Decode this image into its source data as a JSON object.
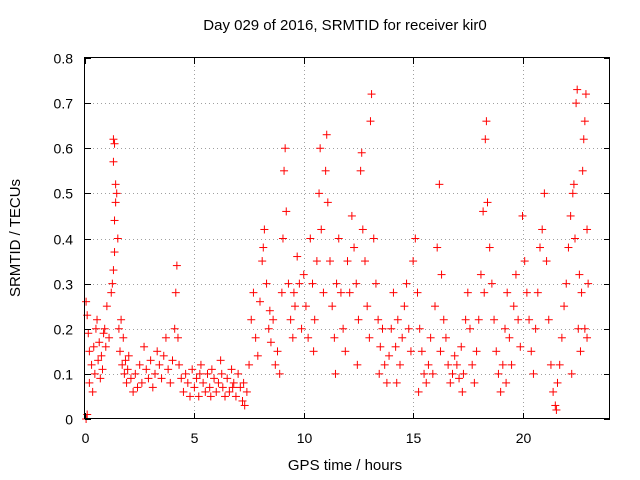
{
  "chart_data": {
    "type": "scatter",
    "title": "Day 029 of 2016, SRMTID for receiver kir0",
    "xlabel": "GPS time / hours",
    "ylabel": "SRMTID / TECUs",
    "xlim": [
      0,
      24
    ],
    "ylim": [
      0,
      0.8
    ],
    "xticks": [
      0,
      5,
      10,
      15,
      20
    ],
    "xtick_labels": [
      "0",
      "5",
      "10",
      "15",
      "20"
    ],
    "yticks": [
      0,
      0.1,
      0.2,
      0.3,
      0.4,
      0.5,
      0.6,
      0.7,
      0.8
    ],
    "ytick_labels": [
      "0",
      "0.1",
      "0.2",
      "0.3",
      "0.4",
      "0.5",
      "0.6",
      "0.7",
      "0.8"
    ],
    "grid": true,
    "marker": "+",
    "color": "#ff0000",
    "series": [
      {
        "name": "kir0",
        "points": [
          [
            0.05,
            0.0
          ],
          [
            0.1,
            0.01
          ],
          [
            0.05,
            0.26
          ],
          [
            0.1,
            0.23
          ],
          [
            0.15,
            0.19
          ],
          [
            0.2,
            0.15
          ],
          [
            0.3,
            0.12
          ],
          [
            0.4,
            0.16
          ],
          [
            0.5,
            0.2
          ],
          [
            0.6,
            0.13
          ],
          [
            0.7,
            0.09
          ],
          [
            0.8,
            0.11
          ],
          [
            0.9,
            0.2
          ],
          [
            1.0,
            0.25
          ],
          [
            1.1,
            0.18
          ],
          [
            0.2,
            0.08
          ],
          [
            0.35,
            0.06
          ],
          [
            0.45,
            0.1
          ],
          [
            0.55,
            0.22
          ],
          [
            0.65,
            0.17
          ],
          [
            0.75,
            0.14
          ],
          [
            0.85,
            0.19
          ],
          [
            0.95,
            0.16
          ],
          [
            1.2,
            0.28
          ],
          [
            1.25,
            0.3
          ],
          [
            1.3,
            0.33
          ],
          [
            1.35,
            0.37
          ],
          [
            1.35,
            0.44
          ],
          [
            1.4,
            0.48
          ],
          [
            1.4,
            0.52
          ],
          [
            1.3,
            0.57
          ],
          [
            1.35,
            0.61
          ],
          [
            1.3,
            0.62
          ],
          [
            1.45,
            0.5
          ],
          [
            1.5,
            0.4
          ],
          [
            1.55,
            0.2
          ],
          [
            1.6,
            0.15
          ],
          [
            1.7,
            0.12
          ],
          [
            1.8,
            0.1
          ],
          [
            1.9,
            0.08
          ],
          [
            2.0,
            0.14
          ],
          [
            2.1,
            0.09
          ],
          [
            2.2,
            0.06
          ],
          [
            1.65,
            0.22
          ],
          [
            1.75,
            0.18
          ],
          [
            1.85,
            0.13
          ],
          [
            1.95,
            0.11
          ],
          [
            2.3,
            0.1
          ],
          [
            2.4,
            0.07
          ],
          [
            2.5,
            0.12
          ],
          [
            2.6,
            0.08
          ],
          [
            2.7,
            0.16
          ],
          [
            2.8,
            0.11
          ],
          [
            2.9,
            0.09
          ],
          [
            3.0,
            0.13
          ],
          [
            3.1,
            0.07
          ],
          [
            3.2,
            0.1
          ],
          [
            3.3,
            0.15
          ],
          [
            3.4,
            0.12
          ],
          [
            3.5,
            0.09
          ],
          [
            3.6,
            0.14
          ],
          [
            3.7,
            0.18
          ],
          [
            3.8,
            0.11
          ],
          [
            3.9,
            0.08
          ],
          [
            4.0,
            0.13
          ],
          [
            4.1,
            0.2
          ],
          [
            4.15,
            0.28
          ],
          [
            4.2,
            0.34
          ],
          [
            4.25,
            0.18
          ],
          [
            4.3,
            0.12
          ],
          [
            4.4,
            0.09
          ],
          [
            4.5,
            0.06
          ],
          [
            4.6,
            0.1
          ],
          [
            4.7,
            0.08
          ],
          [
            4.8,
            0.05
          ],
          [
            4.9,
            0.11
          ],
          [
            5.0,
            0.07
          ],
          [
            5.1,
            0.09
          ],
          [
            5.2,
            0.05
          ],
          [
            5.3,
            0.12
          ],
          [
            5.4,
            0.08
          ],
          [
            5.5,
            0.06
          ],
          [
            5.6,
            0.1
          ],
          [
            5.7,
            0.07
          ],
          [
            5.8,
            0.11
          ],
          [
            5.9,
            0.09
          ],
          [
            6.0,
            0.06
          ],
          [
            6.1,
            0.08
          ],
          [
            6.2,
            0.13
          ],
          [
            6.3,
            0.07
          ],
          [
            6.4,
            0.05
          ],
          [
            6.5,
            0.09
          ],
          [
            6.6,
            0.06
          ],
          [
            6.7,
            0.11
          ],
          [
            6.8,
            0.08
          ],
          [
            6.9,
            0.05
          ],
          [
            7.0,
            0.1
          ],
          [
            7.1,
            0.07
          ],
          [
            7.2,
            0.04
          ],
          [
            7.3,
            0.03
          ],
          [
            7.4,
            0.06
          ],
          [
            5.25,
            0.1
          ],
          [
            5.75,
            0.05
          ],
          [
            6.25,
            0.1
          ],
          [
            6.75,
            0.07
          ],
          [
            7.25,
            0.08
          ],
          [
            7.5,
            0.12
          ],
          [
            7.6,
            0.22
          ],
          [
            7.7,
            0.28
          ],
          [
            7.8,
            0.18
          ],
          [
            7.9,
            0.14
          ],
          [
            8.0,
            0.26
          ],
          [
            8.1,
            0.35
          ],
          [
            8.2,
            0.42
          ],
          [
            8.3,
            0.3
          ],
          [
            8.4,
            0.2
          ],
          [
            8.5,
            0.17
          ],
          [
            8.6,
            0.22
          ],
          [
            8.7,
            0.12
          ],
          [
            8.8,
            0.15
          ],
          [
            8.9,
            0.1
          ],
          [
            9.0,
            0.28
          ],
          [
            9.05,
            0.4
          ],
          [
            9.1,
            0.55
          ],
          [
            9.15,
            0.6
          ],
          [
            9.2,
            0.46
          ],
          [
            9.3,
            0.3
          ],
          [
            9.4,
            0.22
          ],
          [
            9.5,
            0.18
          ],
          [
            9.6,
            0.25
          ],
          [
            9.7,
            0.36
          ],
          [
            9.8,
            0.3
          ],
          [
            9.9,
            0.2
          ],
          [
            8.15,
            0.38
          ],
          [
            8.45,
            0.24
          ],
          [
            9.55,
            0.28
          ],
          [
            10.0,
            0.32
          ],
          [
            10.1,
            0.25
          ],
          [
            10.2,
            0.18
          ],
          [
            10.3,
            0.4
          ],
          [
            10.4,
            0.3
          ],
          [
            10.5,
            0.22
          ],
          [
            10.6,
            0.35
          ],
          [
            10.7,
            0.5
          ],
          [
            10.75,
            0.6
          ],
          [
            10.8,
            0.42
          ],
          [
            10.9,
            0.28
          ],
          [
            11.0,
            0.55
          ],
          [
            11.05,
            0.63
          ],
          [
            11.1,
            0.48
          ],
          [
            11.2,
            0.35
          ],
          [
            11.3,
            0.25
          ],
          [
            11.4,
            0.18
          ],
          [
            11.5,
            0.3
          ],
          [
            11.6,
            0.4
          ],
          [
            11.7,
            0.28
          ],
          [
            11.8,
            0.2
          ],
          [
            11.9,
            0.15
          ],
          [
            12.0,
            0.35
          ],
          [
            12.1,
            0.28
          ],
          [
            12.2,
            0.45
          ],
          [
            12.3,
            0.38
          ],
          [
            12.4,
            0.3
          ],
          [
            12.5,
            0.22
          ],
          [
            12.6,
            0.55
          ],
          [
            12.65,
            0.59
          ],
          [
            12.7,
            0.42
          ],
          [
            12.8,
            0.35
          ],
          [
            12.9,
            0.25
          ],
          [
            13.0,
            0.18
          ],
          [
            13.05,
            0.66
          ],
          [
            13.1,
            0.72
          ],
          [
            13.2,
            0.4
          ],
          [
            13.3,
            0.3
          ],
          [
            13.4,
            0.22
          ],
          [
            13.5,
            0.16
          ],
          [
            13.6,
            0.2
          ],
          [
            13.7,
            0.12
          ],
          [
            13.8,
            0.08
          ],
          [
            13.9,
            0.14
          ],
          [
            10.45,
            0.15
          ],
          [
            11.45,
            0.1
          ],
          [
            12.45,
            0.12
          ],
          [
            13.45,
            0.1
          ],
          [
            14.0,
            0.2
          ],
          [
            14.1,
            0.28
          ],
          [
            14.2,
            0.16
          ],
          [
            14.3,
            0.22
          ],
          [
            14.4,
            0.12
          ],
          [
            14.5,
            0.18
          ],
          [
            14.6,
            0.25
          ],
          [
            14.7,
            0.3
          ],
          [
            14.8,
            0.2
          ],
          [
            14.9,
            0.15
          ],
          [
            15.0,
            0.35
          ],
          [
            15.1,
            0.4
          ],
          [
            15.2,
            0.28
          ],
          [
            15.3,
            0.2
          ],
          [
            15.4,
            0.15
          ],
          [
            15.5,
            0.1
          ],
          [
            15.6,
            0.08
          ],
          [
            15.7,
            0.12
          ],
          [
            15.8,
            0.18
          ],
          [
            15.9,
            0.1
          ],
          [
            16.0,
            0.25
          ],
          [
            16.1,
            0.38
          ],
          [
            16.2,
            0.52
          ],
          [
            16.3,
            0.32
          ],
          [
            16.4,
            0.22
          ],
          [
            16.5,
            0.18
          ],
          [
            16.6,
            0.12
          ],
          [
            16.7,
            0.08
          ],
          [
            16.8,
            0.1
          ],
          [
            16.9,
            0.14
          ],
          [
            14.25,
            0.08
          ],
          [
            15.25,
            0.06
          ],
          [
            16.25,
            0.15
          ],
          [
            17.0,
            0.12
          ],
          [
            17.1,
            0.09
          ],
          [
            17.2,
            0.16
          ],
          [
            17.3,
            0.1
          ],
          [
            17.4,
            0.22
          ],
          [
            17.5,
            0.28
          ],
          [
            17.6,
            0.2
          ],
          [
            17.7,
            0.12
          ],
          [
            17.8,
            0.08
          ],
          [
            17.9,
            0.15
          ],
          [
            18.0,
            0.22
          ],
          [
            18.1,
            0.32
          ],
          [
            18.2,
            0.46
          ],
          [
            18.3,
            0.62
          ],
          [
            18.35,
            0.66
          ],
          [
            18.4,
            0.48
          ],
          [
            18.5,
            0.38
          ],
          [
            18.6,
            0.3
          ],
          [
            18.7,
            0.22
          ],
          [
            18.8,
            0.15
          ],
          [
            18.9,
            0.1
          ],
          [
            19.0,
            0.06
          ],
          [
            19.1,
            0.12
          ],
          [
            19.2,
            0.2
          ],
          [
            19.3,
            0.28
          ],
          [
            19.4,
            0.18
          ],
          [
            19.5,
            0.12
          ],
          [
            19.6,
            0.25
          ],
          [
            19.7,
            0.32
          ],
          [
            19.8,
            0.22
          ],
          [
            19.9,
            0.16
          ],
          [
            17.25,
            0.06
          ],
          [
            18.25,
            0.28
          ],
          [
            19.25,
            0.08
          ],
          [
            20.0,
            0.45
          ],
          [
            20.1,
            0.35
          ],
          [
            20.2,
            0.28
          ],
          [
            20.3,
            0.22
          ],
          [
            20.4,
            0.15
          ],
          [
            20.5,
            0.1
          ],
          [
            20.6,
            0.2
          ],
          [
            20.7,
            0.28
          ],
          [
            20.8,
            0.38
          ],
          [
            20.9,
            0.42
          ],
          [
            21.0,
            0.5
          ],
          [
            21.1,
            0.35
          ],
          [
            21.2,
            0.22
          ],
          [
            21.3,
            0.12
          ],
          [
            21.4,
            0.06
          ],
          [
            21.5,
            0.03
          ],
          [
            21.6,
            0.08
          ],
          [
            21.7,
            0.12
          ],
          [
            21.8,
            0.18
          ],
          [
            21.9,
            0.25
          ],
          [
            22.0,
            0.3
          ],
          [
            22.1,
            0.38
          ],
          [
            22.2,
            0.45
          ],
          [
            22.3,
            0.5
          ],
          [
            22.35,
            0.52
          ],
          [
            22.4,
            0.4
          ],
          [
            22.45,
            0.7
          ],
          [
            22.5,
            0.73
          ],
          [
            22.6,
            0.32
          ],
          [
            22.7,
            0.28
          ],
          [
            22.75,
            0.55
          ],
          [
            22.8,
            0.62
          ],
          [
            22.85,
            0.66
          ],
          [
            22.9,
            0.72
          ],
          [
            22.95,
            0.42
          ],
          [
            23.0,
            0.3
          ],
          [
            22.55,
            0.2
          ],
          [
            22.65,
            0.15
          ],
          [
            22.85,
            0.2
          ],
          [
            21.55,
            0.02
          ],
          [
            22.25,
            0.1
          ],
          [
            22.95,
            0.18
          ]
        ]
      }
    ]
  }
}
